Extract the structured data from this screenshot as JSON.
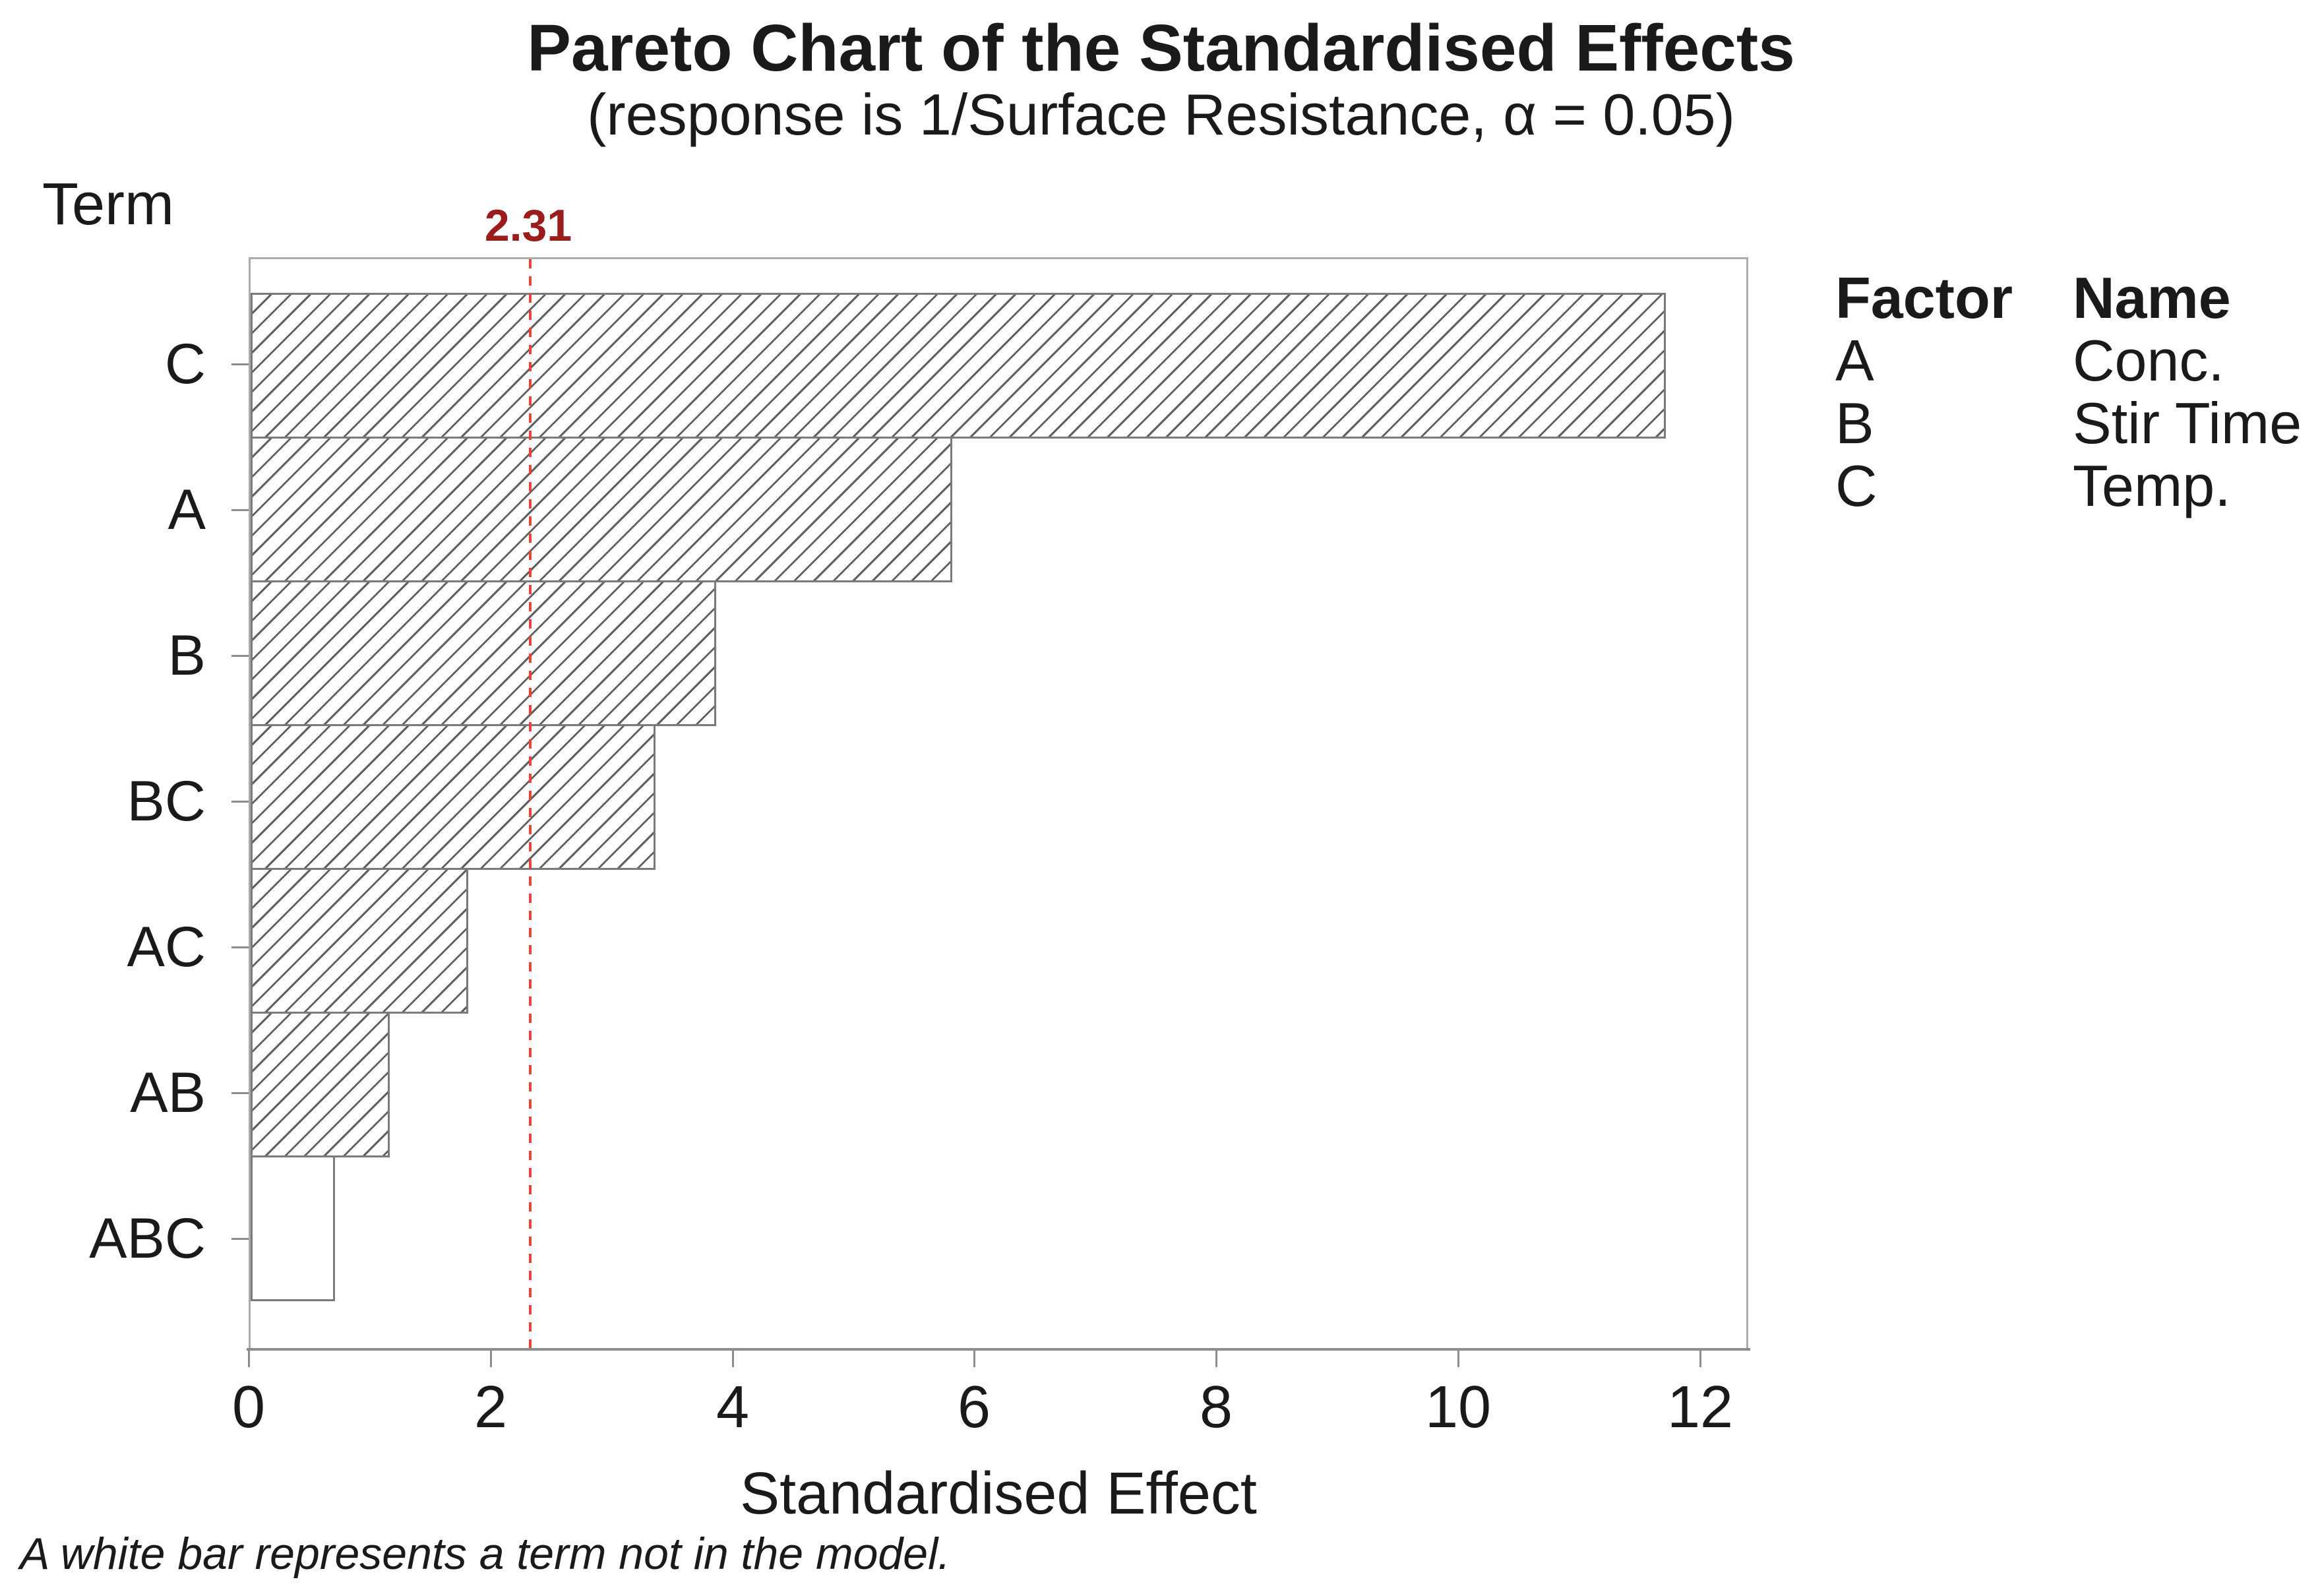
{
  "title": "Pareto Chart of the Standardised Effects",
  "subtitle": "(response is 1/Surface Resistance, α = 0.05)",
  "y_axis_title": "Term",
  "x_axis_title": "Standardised Effect",
  "footnote": "A white bar represents a term not in the model.",
  "reference_line": {
    "value": 2.31,
    "label": "2.31"
  },
  "legend": {
    "factor_header": "Factor",
    "name_header": "Name",
    "rows": [
      {
        "factor": "A",
        "name": "Conc."
      },
      {
        "factor": "B",
        "name": "Stir Time"
      },
      {
        "factor": "C",
        "name": "Temp."
      }
    ]
  },
  "chart_data": {
    "type": "bar",
    "orientation": "horizontal",
    "title": "Pareto Chart of the Standardised Effects",
    "subtitle": "(response is 1/Surface Resistance, α = 0.05)",
    "xlabel": "Standardised Effect",
    "ylabel": "Term",
    "categories": [
      "C",
      "A",
      "B",
      "BC",
      "AC",
      "AB",
      "ABC"
    ],
    "values": [
      11.7,
      5.8,
      3.85,
      3.35,
      1.8,
      1.15,
      0.7
    ],
    "bar_styles": [
      "hatched",
      "hatched",
      "hatched",
      "hatched",
      "hatched",
      "hatched",
      "white"
    ],
    "white_bar_meaning": "term not in the model",
    "reference_line_value": 2.31,
    "xlim": [
      0,
      12.4
    ],
    "x_ticks": [
      0,
      2,
      4,
      6,
      8,
      10,
      12
    ],
    "grid": false,
    "legend_position": "right"
  },
  "colors": {
    "text": "#1a1a1a",
    "plot_border": "#ababab",
    "axis_line": "#8c8c8c",
    "bar_border": "#7a7a7a",
    "hatch_line": "#606060",
    "reference_line": "#e8443b",
    "reference_label": "#9b1c1c",
    "background": "#ffffff"
  }
}
